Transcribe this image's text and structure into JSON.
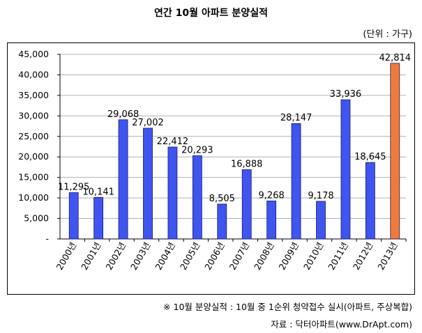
{
  "header": {
    "title": "연간 10월 아파트 분양실적",
    "unit": "(단위 : 가구)"
  },
  "footer": {
    "note": "※ 10월 분양실적 : 10월 중 1순위 청약접수 실시(아파트, 주상복합)",
    "source": "자료 : 닥터아파트(www.DrApt.com)"
  },
  "colors": {
    "bar": "#3f55f0",
    "bar_highlight": "#f07a3a",
    "grid": "#b0b0b0",
    "axis": "#000000"
  },
  "chart_data": {
    "type": "bar",
    "title": "연간 10월 아파트 분양실적",
    "xlabel": "",
    "ylabel": "",
    "grid": true,
    "legend": "none",
    "categories": [
      "2000년",
      "2001년",
      "2002년",
      "2003년",
      "2004년",
      "2005년",
      "2006년",
      "2007년",
      "2008년",
      "2009년",
      "2010년",
      "2011년",
      "2012년",
      "2013년"
    ],
    "values": [
      11295,
      10141,
      29068,
      27002,
      22412,
      20293,
      8505,
      16888,
      9268,
      28147,
      9178,
      33936,
      18645,
      42814
    ],
    "value_labels": [
      "11,295",
      "10,141",
      "29,068",
      "27,002",
      "22,412",
      "20,293",
      "8,505",
      "16,888",
      "9,268",
      "28,147",
      "9,178",
      "33,936",
      "18,645",
      "42,814"
    ],
    "highlight_index": 13,
    "ylim": [
      0,
      45000
    ],
    "yticks": [
      0,
      5000,
      10000,
      15000,
      20000,
      25000,
      30000,
      35000,
      40000,
      45000
    ],
    "ytick_labels": [
      "-",
      "5,000",
      "10,000",
      "15,000",
      "20,000",
      "25,000",
      "30,000",
      "35,000",
      "40,000",
      "45,000"
    ]
  }
}
